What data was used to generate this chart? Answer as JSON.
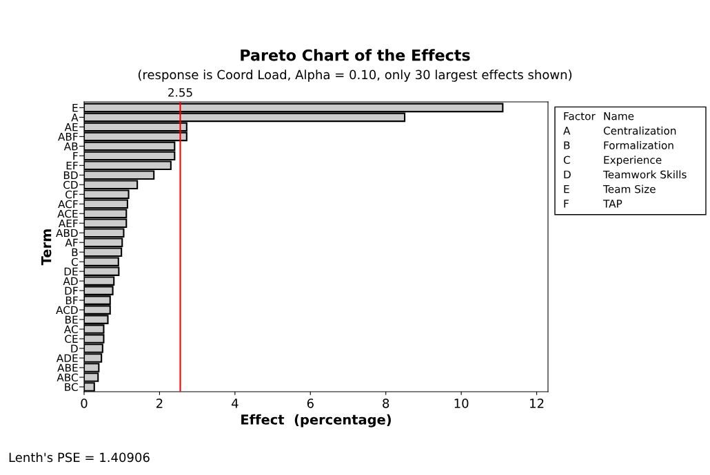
{
  "chart_data": {
    "type": "bar",
    "orientation": "horizontal",
    "title": "Pareto Chart of the Effects",
    "subtitle": "(response is Coord Load, Alpha = 0.10, only 30 largest effects shown)",
    "xlabel": "Effect  (percentage)",
    "ylabel": "Term",
    "categories": [
      "E",
      "A",
      "AE",
      "ABF",
      "AB",
      "F",
      "EF",
      "BD",
      "CD",
      "CF",
      "ACF",
      "ACE",
      "AEF",
      "ABD",
      "AF",
      "B",
      "C",
      "DE",
      "AD",
      "DF",
      "BF",
      "ACD",
      "BE",
      "AC",
      "CE",
      "D",
      "ADE",
      "ABE",
      "ABC",
      "BC"
    ],
    "values": [
      11.1,
      8.5,
      2.72,
      2.72,
      2.4,
      2.4,
      2.3,
      1.85,
      1.41,
      1.18,
      1.15,
      1.12,
      1.12,
      1.05,
      1.01,
      0.99,
      0.91,
      0.92,
      0.79,
      0.76,
      0.69,
      0.69,
      0.63,
      0.52,
      0.52,
      0.49,
      0.46,
      0.39,
      0.37,
      0.27
    ],
    "color": "#cccccc",
    "xlim": [
      0,
      12.3
    ],
    "xticks": [
      0,
      2,
      4,
      6,
      8,
      10,
      12
    ],
    "grid": false,
    "ref_lines": [
      {
        "axis": "x",
        "value": 2.55,
        "label": "2.55",
        "color": "#ff0000"
      }
    ],
    "annotations": [
      "Lenth's PSE = 1.40906",
      "Factor",
      "Name",
      "A",
      "Centralization",
      "B",
      "Formalization",
      "C",
      "Experience",
      "D",
      "Teamwork Skills",
      "E",
      "Team Size",
      "F",
      "TAP"
    ]
  }
}
